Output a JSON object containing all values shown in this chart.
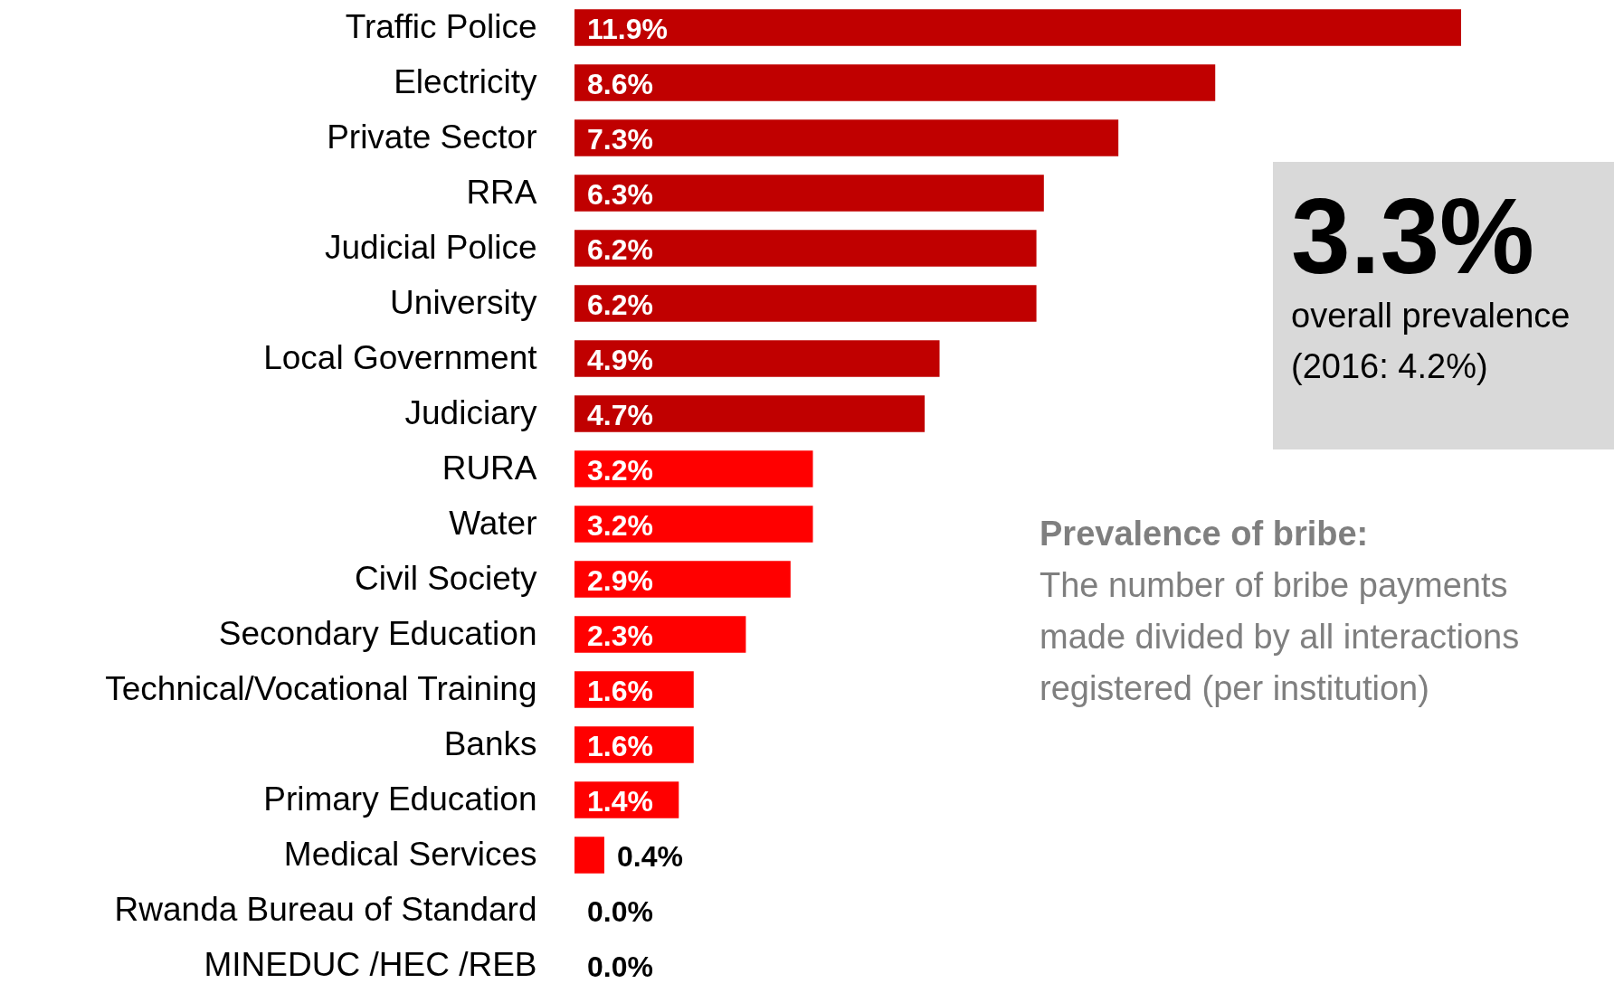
{
  "chart_data": {
    "type": "bar",
    "orientation": "horizontal",
    "categories": [
      "Traffic Police",
      "Electricity",
      "Private Sector",
      "RRA",
      "Judicial Police",
      "University",
      "Local Government",
      "Judiciary",
      "RURA",
      "Water",
      "Civil Society",
      "Secondary Education",
      "Technical/Vocational Training",
      "Banks",
      "Primary Education",
      "Medical Services",
      "Rwanda Bureau of Standard",
      "MINEDUC /HEC /REB"
    ],
    "values": [
      11.9,
      8.6,
      7.3,
      6.3,
      6.2,
      6.2,
      4.9,
      4.7,
      3.2,
      3.2,
      2.9,
      2.3,
      1.6,
      1.6,
      1.4,
      0.4,
      0.0,
      0.0
    ],
    "value_labels": [
      "11.9%",
      "8.6%",
      "7.3%",
      "6.3%",
      "6.2%",
      "6.2%",
      "4.9%",
      "4.7%",
      "3.2%",
      "3.2%",
      "2.9%",
      "2.3%",
      "1.6%",
      "1.6%",
      "1.4%",
      "0.4%",
      "0.0%",
      "0.0%"
    ],
    "colors": [
      "#c00000",
      "#c00000",
      "#c00000",
      "#c00000",
      "#c00000",
      "#c00000",
      "#c00000",
      "#c00000",
      "#ff0000",
      "#ff0000",
      "#ff0000",
      "#ff0000",
      "#ff0000",
      "#ff0000",
      "#ff0000",
      "#ff0000",
      "#ff0000",
      "#ff0000"
    ],
    "annotations": [
      "3.3%",
      "overall prevalence",
      "(2016: 4.2%)",
      "Prevalence of bribe:",
      "The number of bribe payments made divided by all interactions registered (per institution)"
    ]
  }
}
